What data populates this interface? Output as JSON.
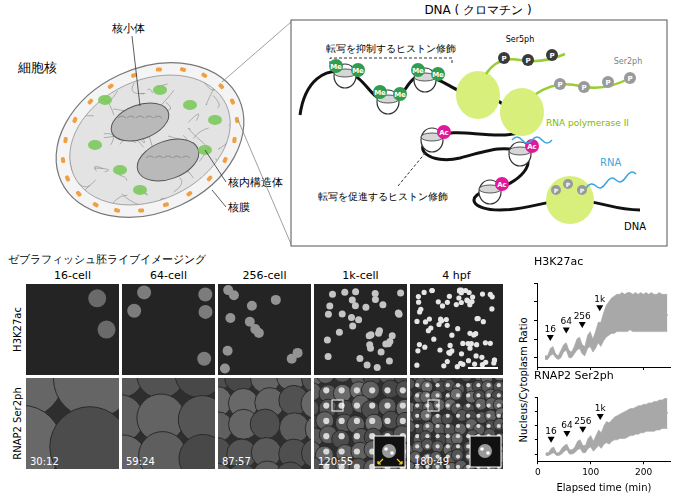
{
  "nucleus_diagram": {
    "title": "細胞核",
    "labels": [
      "核小体",
      "核内構造体",
      "核膜"
    ]
  },
  "chromatin_diagram": {
    "title": "DNA ( クロマチン )",
    "repressive_label": "転写を抑制するヒストン修飾",
    "activating_label": "転写を促進するヒストン修飾",
    "methyl_mark": "Me",
    "acetyl_mark": "Ac",
    "phospho_mark": "P",
    "ser5_label": "Ser5ph",
    "ser2_label": "Ser2ph",
    "polymerase_label": "RNA polymerase II",
    "rna_label": "RNA",
    "dna_label": "DNA"
  },
  "imaging": {
    "title": "ゼブラフィッシュ胚ライブイメージング",
    "stages": [
      "16-cell",
      "64-cell",
      "256-cell",
      "1k-cell",
      "4 hpf"
    ],
    "rows": [
      "H3K27ac",
      "RNAP2 Ser2ph"
    ],
    "timestamps": [
      "30:12",
      "59:24",
      "87:57",
      "120:55",
      "180:49"
    ]
  },
  "chart_data": [
    {
      "type": "line",
      "title": "H3K27ac",
      "x": [
        15,
        20,
        25,
        30,
        35,
        40,
        45,
        50,
        55,
        60,
        65,
        70,
        75,
        80,
        85,
        90,
        95,
        100,
        105,
        110,
        115,
        120,
        125,
        130,
        135,
        140,
        145,
        150,
        155,
        160,
        165,
        170,
        175,
        180,
        185,
        190,
        195,
        200,
        205,
        210,
        215,
        220,
        225,
        230,
        235,
        240,
        245
      ],
      "series": [
        {
          "type": "range",
          "color": "#a8a8a8",
          "low": [
            0.9,
            0.9,
            1.1,
            1.2,
            1.0,
            0.9,
            1.0,
            1.3,
            1.4,
            1.0,
            1.0,
            1.2,
            1.4,
            1.5,
            1.2,
            1.1,
            1.5,
            1.6,
            1.3,
            1.5,
            1.8,
            1.6,
            1.9,
            2.1,
            2.2,
            2.3,
            2.3,
            2.4,
            2.4,
            2.4,
            2.4,
            2.4,
            2.5,
            2.4,
            2.4,
            2.4,
            2.4,
            2.4,
            2.4,
            2.4,
            2.4,
            2.4,
            2.4,
            2.4,
            2.4,
            2.4,
            2.4
          ],
          "high": [
            1.1,
            1.1,
            1.5,
            1.6,
            1.2,
            1.1,
            1.4,
            1.7,
            1.8,
            1.4,
            1.3,
            1.6,
            2.0,
            2.1,
            1.7,
            1.6,
            2.2,
            2.4,
            2.0,
            2.4,
            2.9,
            2.9,
            3.4,
            3.8,
            4.0,
            4.2,
            4.3,
            4.4,
            4.4,
            4.5,
            4.4,
            4.5,
            4.5,
            4.4,
            4.5,
            4.4,
            4.5,
            4.4,
            4.5,
            4.4,
            4.5,
            4.4,
            4.4,
            4.5,
            4.4,
            4.4,
            4.4
          ]
        },
        {
          "type": "line",
          "color": "#000000",
          "values": [
            1.0,
            1.0,
            1.3,
            1.4,
            1.1,
            1.0,
            1.2,
            1.5,
            1.6,
            1.2,
            1.1,
            1.4,
            1.7,
            1.8,
            1.4,
            1.3,
            1.8,
            2.0,
            1.6,
            1.9,
            2.3,
            2.2,
            2.6,
            2.9,
            3.0,
            3.1,
            3.2,
            3.3,
            3.3,
            3.4,
            3.3,
            3.4,
            3.4,
            3.3,
            3.4,
            3.3,
            3.4,
            3.3,
            3.4,
            3.3,
            3.4,
            3.3,
            3.3,
            3.4,
            3.3,
            3.3,
            3.3
          ]
        }
      ],
      "xlim": [
        0,
        250
      ],
      "xticks": [
        0,
        100,
        200
      ],
      "ylim": [
        0.5,
        5
      ],
      "yticks": [
        1,
        2,
        3,
        4,
        5
      ],
      "tick_labels": false,
      "grid": false,
      "annotations": [
        {
          "text": "16",
          "x": 25,
          "y": 1.9
        },
        {
          "text": "64",
          "x": 55,
          "y": 2.3
        },
        {
          "text": "256",
          "x": 85,
          "y": 2.6
        },
        {
          "text": "1k",
          "x": 118,
          "y": 3.5
        }
      ]
    },
    {
      "type": "line",
      "title": "RNAP2 Ser2ph",
      "x_label": "Elapsed time (min)",
      "y_label": "Nucleus/Cytoplasm Ratio",
      "x": [
        15,
        20,
        25,
        30,
        35,
        40,
        45,
        50,
        55,
        60,
        65,
        70,
        75,
        80,
        85,
        90,
        95,
        100,
        105,
        110,
        115,
        120,
        125,
        130,
        135,
        140,
        145,
        150,
        155,
        160,
        165,
        170,
        175,
        180,
        185,
        190,
        195,
        200,
        205,
        210,
        215,
        220,
        225,
        230,
        235,
        240,
        245
      ],
      "series": [
        {
          "type": "range",
          "color": "#a8a8a8",
          "low": [
            0.9,
            0.9,
            1.0,
            1.1,
            0.9,
            0.9,
            1.0,
            1.2,
            1.3,
            1.0,
            1.0,
            1.1,
            1.3,
            1.4,
            1.1,
            1.1,
            1.4,
            1.5,
            1.2,
            1.4,
            1.6,
            1.4,
            1.7,
            1.8,
            1.7,
            1.9,
            2.0,
            2.0,
            2.1,
            2.1,
            2.1,
            2.2,
            2.3,
            2.3,
            2.4,
            2.4,
            2.5,
            2.5,
            2.6,
            2.6,
            2.6,
            2.6,
            2.7,
            2.7,
            2.8,
            2.8,
            2.8
          ],
          "high": [
            1.1,
            1.1,
            1.4,
            1.5,
            1.1,
            1.1,
            1.4,
            1.6,
            1.7,
            1.3,
            1.3,
            1.5,
            1.9,
            2.0,
            1.6,
            1.6,
            2.1,
            2.3,
            1.9,
            2.3,
            2.7,
            2.5,
            3.0,
            3.3,
            3.2,
            3.4,
            3.6,
            3.7,
            3.8,
            3.9,
            4.0,
            4.1,
            4.2,
            4.2,
            4.3,
            4.4,
            4.4,
            4.5,
            4.5,
            4.6,
            4.6,
            4.7,
            4.7,
            4.8,
            4.8,
            4.9,
            4.9
          ]
        },
        {
          "type": "line",
          "color": "#000000",
          "values": [
            1.0,
            1.0,
            1.2,
            1.3,
            1.0,
            1.0,
            1.2,
            1.4,
            1.5,
            1.1,
            1.1,
            1.3,
            1.6,
            1.7,
            1.3,
            1.3,
            1.7,
            1.9,
            1.5,
            1.8,
            2.1,
            1.9,
            2.3,
            2.5,
            2.4,
            2.6,
            2.8,
            2.8,
            2.9,
            3.0,
            3.0,
            3.1,
            3.2,
            3.2,
            3.3,
            3.4,
            3.4,
            3.5,
            3.5,
            3.6,
            3.6,
            3.7,
            3.7,
            3.8,
            3.8,
            3.9,
            3.9
          ]
        }
      ],
      "xlim": [
        0,
        250
      ],
      "xticks": [
        0,
        100,
        200
      ],
      "ylim": [
        0.5,
        5
      ],
      "yticks": [
        1,
        2,
        3,
        4,
        5
      ],
      "tick_labels": "x",
      "grid": false,
      "annotations": [
        {
          "text": "16",
          "x": 25,
          "y": 1.8
        },
        {
          "text": "64",
          "x": 55,
          "y": 2.2
        },
        {
          "text": "256",
          "x": 85,
          "y": 2.5
        },
        {
          "text": "1k",
          "x": 118,
          "y": 3.4
        }
      ]
    }
  ]
}
